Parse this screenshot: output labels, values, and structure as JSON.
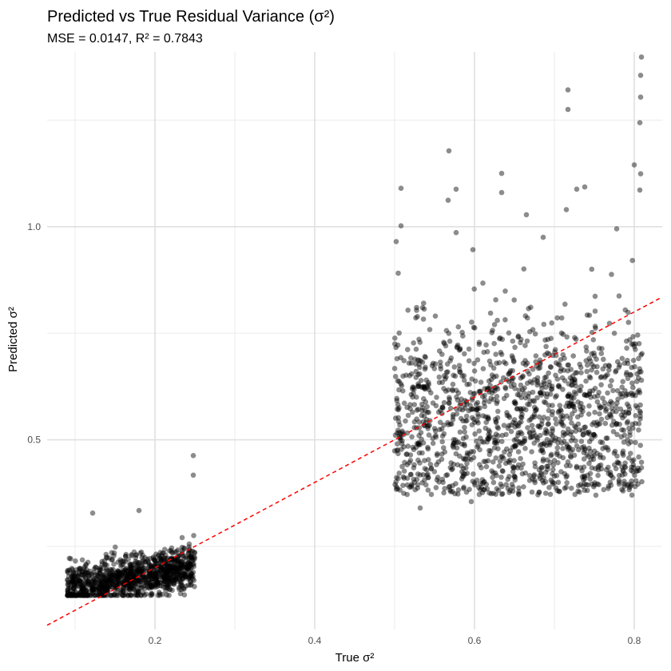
{
  "chart_data": {
    "type": "scatter",
    "title": "Predicted vs True Residual Variance (σ²)",
    "subtitle": "MSE = 0.0147, R² = 0.7843",
    "xlabel": "True σ²",
    "ylabel": "Predicted σ²",
    "xlim": [
      0.065,
      0.835
    ],
    "ylim": [
      0.055,
      1.41
    ],
    "x_ticks": [
      0.2,
      0.4,
      0.6,
      0.8
    ],
    "x_tick_labels": [
      "0.2",
      "0.4",
      "0.6",
      "0.8"
    ],
    "x_minor_ticks": [
      0.1,
      0.3,
      0.5,
      0.7
    ],
    "y_ticks": [
      0.5,
      1.0
    ],
    "y_tick_labels": [
      "0.5",
      "1.0"
    ],
    "y_minor_ticks": [
      0.25,
      0.75,
      1.25
    ],
    "grid": true,
    "point_color": "#000000",
    "point_alpha": 0.45,
    "reference_line": {
      "type": "identity",
      "color": "#ff0000",
      "style": "dashed",
      "from": [
        0.065,
        0.065
      ],
      "to": [
        0.835,
        0.835
      ]
    },
    "clusters": [
      {
        "x_range": [
          0.09,
          0.25
        ],
        "y_center_formula": "0.12 + 0.33 * x",
        "y_spread": 0.025,
        "count": 1100
      },
      {
        "x_range": [
          0.5,
          0.81
        ],
        "y_center_formula": "0.55",
        "y_spread": 0.12,
        "count": 1450
      }
    ],
    "highlighted_points": [
      {
        "x": 0.248,
        "y": 0.463
      },
      {
        "x": 0.248,
        "y": 0.417
      },
      {
        "x": 0.122,
        "y": 0.328
      },
      {
        "x": 0.18,
        "y": 0.334
      },
      {
        "x": 0.809,
        "y": 1.398
      },
      {
        "x": 0.808,
        "y": 1.355
      },
      {
        "x": 0.808,
        "y": 1.304
      },
      {
        "x": 0.807,
        "y": 1.244
      },
      {
        "x": 0.717,
        "y": 1.321
      },
      {
        "x": 0.717,
        "y": 1.275
      },
      {
        "x": 0.8,
        "y": 1.145
      },
      {
        "x": 0.808,
        "y": 1.124
      },
      {
        "x": 0.807,
        "y": 1.086
      },
      {
        "x": 0.568,
        "y": 1.178
      },
      {
        "x": 0.634,
        "y": 1.125
      },
      {
        "x": 0.634,
        "y": 1.08
      },
      {
        "x": 0.567,
        "y": 1.062
      },
      {
        "x": 0.577,
        "y": 1.088
      },
      {
        "x": 0.508,
        "y": 1.09
      },
      {
        "x": 0.508,
        "y": 1.002
      },
      {
        "x": 0.665,
        "y": 1.028
      },
      {
        "x": 0.715,
        "y": 1.04
      },
      {
        "x": 0.728,
        "y": 1.088
      },
      {
        "x": 0.738,
        "y": 1.093
      },
      {
        "x": 0.598,
        "y": 0.946
      },
      {
        "x": 0.577,
        "y": 0.986
      },
      {
        "x": 0.502,
        "y": 0.965
      },
      {
        "x": 0.686,
        "y": 0.975
      },
      {
        "x": 0.778,
        "y": 0.995
      },
      {
        "x": 0.752,
        "y": 0.37
      },
      {
        "x": 0.532,
        "y": 0.34
      },
      {
        "x": 0.596,
        "y": 0.355
      },
      {
        "x": 0.546,
        "y": 0.372
      }
    ]
  }
}
